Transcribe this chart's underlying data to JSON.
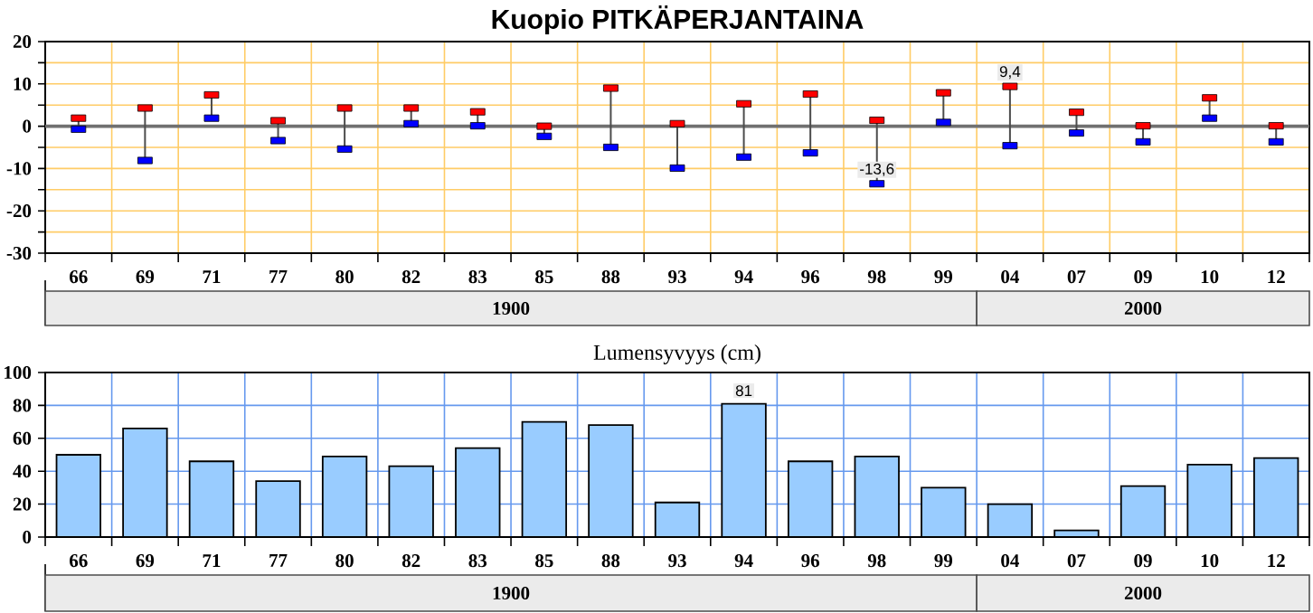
{
  "chart_data": [
    {
      "type": "scatter",
      "title": "Kuopio  PITKÄPERJANTAINA",
      "categories": [
        "66",
        "69",
        "71",
        "77",
        "80",
        "82",
        "83",
        "85",
        "88",
        "93",
        "94",
        "96",
        "98",
        "99",
        "04",
        "07",
        "09",
        "10",
        "12"
      ],
      "annotations": [
        "1900",
        "2000"
      ],
      "series": [
        {
          "color": "#ff0000",
          "values": [
            1.9,
            4.3,
            7.4,
            1.3,
            4.3,
            4.3,
            3.4,
            0,
            9.0,
            0.6,
            5.3,
            7.6,
            1.4,
            7.9,
            9.4,
            3.3,
            0.1,
            6.7,
            0.1
          ],
          "value_labels": [
            null,
            null,
            null,
            null,
            null,
            null,
            null,
            null,
            null,
            null,
            null,
            null,
            null,
            null,
            "9,4",
            null,
            null,
            null,
            null
          ]
        },
        {
          "color": "#0000ff",
          "values": [
            -0.7,
            -8.1,
            1.9,
            -3.4,
            -5.4,
            0.6,
            0.1,
            -2.4,
            -5.0,
            -9.9,
            -7.3,
            -6.3,
            -13.6,
            0.9,
            -4.6,
            -1.6,
            -3.7,
            1.9,
            -3.7
          ],
          "value_labels": [
            null,
            null,
            null,
            null,
            null,
            null,
            null,
            null,
            null,
            null,
            null,
            null,
            "-13,6",
            null,
            null,
            null,
            null,
            null,
            null
          ]
        }
      ],
      "ylim": [
        -30,
        20
      ],
      "yticks": [
        -30,
        {
          "value": -25,
          "label": null
        },
        -20,
        {
          "value": -15,
          "label": null
        },
        -10,
        {
          "value": -5,
          "label": null
        },
        0,
        {
          "value": 5,
          "label": null
        },
        10,
        {
          "value": 15,
          "label": null
        },
        20
      ],
      "ref_lines": [
        {
          "axis": "y",
          "value": 0,
          "color": "#707070"
        }
      ],
      "marker": "square",
      "grid": true
    },
    {
      "type": "bar",
      "title": "Lumensyvyys (cm)",
      "categories": [
        "66",
        "69",
        "71",
        "77",
        "80",
        "82",
        "83",
        "85",
        "88",
        "93",
        "94",
        "96",
        "98",
        "99",
        "04",
        "07",
        "09",
        "10",
        "12"
      ],
      "annotations": [
        "1900",
        "2000"
      ],
      "values": [
        50,
        66,
        46,
        34,
        49,
        43,
        54,
        70,
        68,
        21,
        81,
        46,
        49,
        30,
        20,
        4,
        31,
        44,
        48
      ],
      "value_labels": [
        null,
        null,
        null,
        null,
        null,
        null,
        null,
        null,
        null,
        null,
        "81",
        null,
        null,
        null,
        null,
        null,
        null,
        null,
        null
      ],
      "color": "#99ccff",
      "ylim": [
        0,
        100
      ],
      "yticks": [
        0,
        20,
        40,
        60,
        80,
        100
      ],
      "grid": true
    }
  ]
}
